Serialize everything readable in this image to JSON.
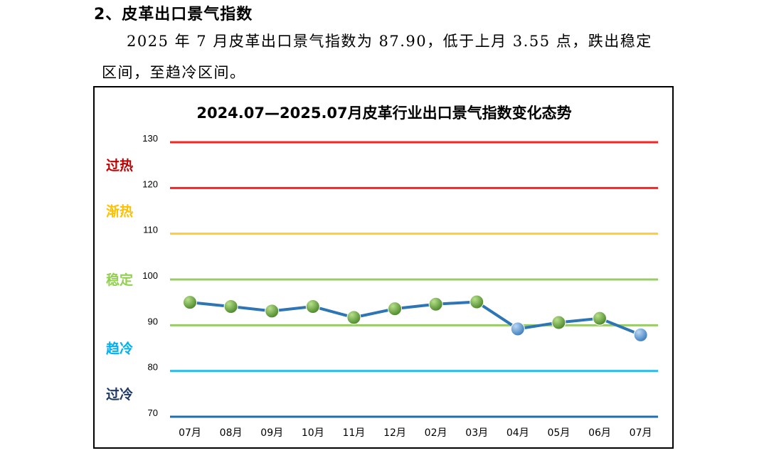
{
  "section_heading": "2、皮革出口景气指数",
  "paragraph": {
    "line1": "2025 年 7 月皮革出口景气指数为 87.90，低于上月 3.55 点，跌出稳定",
    "line2": "区间，至趋冷区间。"
  },
  "chart_data": {
    "type": "line",
    "title": "2024.07—2025.07月皮革行业出口景气指数变化态势",
    "categories": [
      "07月",
      "08月",
      "09月",
      "10月",
      "11月",
      "12月",
      "02月",
      "03月",
      "04月",
      "05月",
      "06月",
      "07月"
    ],
    "values": [
      95.0,
      94.1,
      93.1,
      94.1,
      91.7,
      93.6,
      94.6,
      95.1,
      89.2,
      90.6,
      91.5,
      87.9
    ],
    "ylim": [
      70,
      130
    ],
    "yticks": [
      130,
      120,
      110,
      100,
      90,
      80,
      70
    ],
    "threshold_lines": [
      {
        "value": 130,
        "color": "#ff2020"
      },
      {
        "value": 120,
        "color": "#ff2020"
      },
      {
        "value": 110,
        "color": "#ffcc33"
      },
      {
        "value": 100,
        "color": "#99cc66"
      },
      {
        "value": 90,
        "color": "#99cc66"
      },
      {
        "value": 80,
        "color": "#33bbee"
      },
      {
        "value": 70,
        "color": "#1f6fb0"
      }
    ],
    "zone_labels": [
      {
        "text": "过热",
        "value": 125,
        "color": "#c00000"
      },
      {
        "text": "渐热",
        "value": 115,
        "color": "#ffc000"
      },
      {
        "text": "稳定",
        "value": 100,
        "color": "#92d050"
      },
      {
        "text": "趋冷",
        "value": 85,
        "color": "#00b0f0"
      },
      {
        "text": "过冷",
        "value": 75,
        "color": "#1f3864"
      }
    ],
    "line_color": "#2e75b6",
    "marker_color_stable": "#70ad47",
    "marker_color_cool": "#5b9bd5",
    "grid": false,
    "legend": "none"
  }
}
